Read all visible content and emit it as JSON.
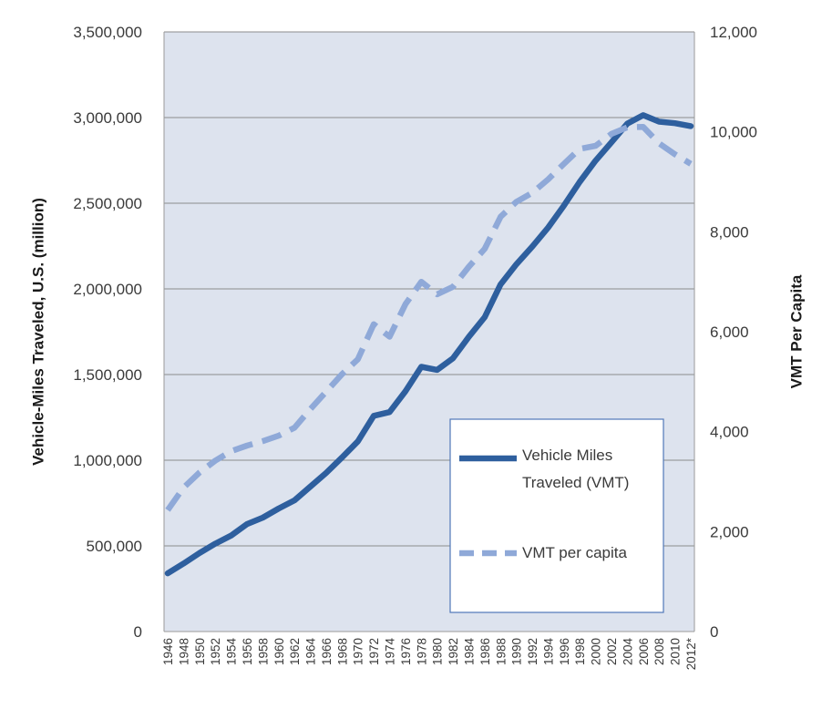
{
  "chart_data": {
    "type": "line",
    "x": [
      "1946",
      "1948",
      "1950",
      "1952",
      "1954",
      "1956",
      "1958",
      "1960",
      "1962",
      "1964",
      "1966",
      "1968",
      "1970",
      "1972",
      "1974",
      "1976",
      "1978",
      "1980",
      "1982",
      "1984",
      "1986",
      "1988",
      "1990",
      "1992",
      "1994",
      "1996",
      "1998",
      "2000",
      "2002",
      "2004",
      "2006",
      "2008",
      "2010",
      "2012*"
    ],
    "xlabel": "",
    "y_left": {
      "label": "Vehicle-Miles Traveled, U.S. (million)",
      "ylim": [
        0,
        3500000
      ],
      "ticks": [
        0,
        500000,
        1000000,
        1500000,
        2000000,
        2500000,
        3000000,
        3500000
      ],
      "tick_labels": [
        "0",
        "500,000",
        "1,000,000",
        "1,500,000",
        "2,000,000",
        "2,500,000",
        "3,000,000",
        "3,500,000"
      ]
    },
    "y_right": {
      "label": "VMT Per Capita",
      "ylim": [
        0,
        12000
      ],
      "ticks": [
        0,
        2000,
        4000,
        6000,
        8000,
        10000,
        12000
      ],
      "tick_labels": [
        "0",
        "2,000",
        "4,000",
        "6,000",
        "8,000",
        "10,000",
        "12,000"
      ]
    },
    "series": [
      {
        "name": "Vehicle Miles Traveled (VMT)",
        "axis": "left",
        "style": "solid",
        "color": "#2e5f9e",
        "values": [
          340000,
          397000,
          458000,
          513000,
          560000,
          627000,
          665000,
          718000,
          766000,
          846000,
          926000,
          1016000,
          1110000,
          1259000,
          1281000,
          1402000,
          1545000,
          1527000,
          1595000,
          1720000,
          1835000,
          2026000,
          2144000,
          2247000,
          2358000,
          2486000,
          2625000,
          2749000,
          2856000,
          2965000,
          3014000,
          2976000,
          2967000,
          2950000
        ]
      },
      {
        "name": "VMT per capita",
        "axis": "right",
        "style": "dashed",
        "color": "#8fa9d8",
        "values": [
          2430,
          2880,
          3180,
          3420,
          3610,
          3720,
          3810,
          3920,
          4080,
          4450,
          4800,
          5150,
          5450,
          6150,
          5900,
          6550,
          7000,
          6750,
          6900,
          7300,
          7660,
          8300,
          8600,
          8780,
          9050,
          9360,
          9660,
          9720,
          9960,
          10090,
          10100,
          9770,
          9550,
          9360
        ]
      }
    ],
    "grid": true,
    "legend": "bottom-right",
    "plot_background": "#dde3ee"
  }
}
